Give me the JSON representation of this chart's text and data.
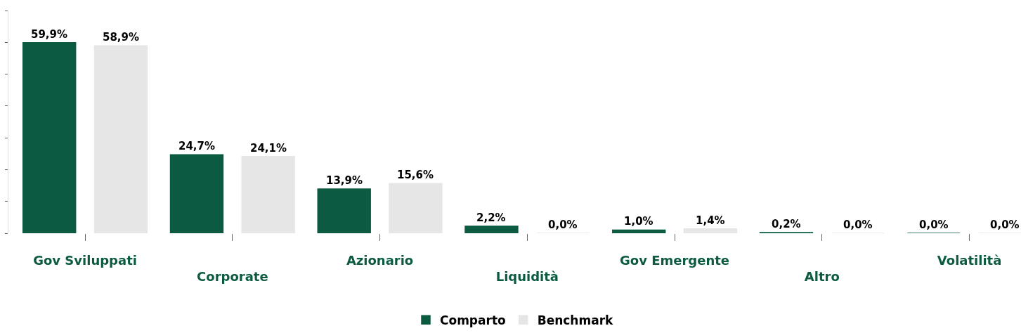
{
  "chart_data": {
    "type": "bar",
    "categories": [
      "Gov Sviluppati",
      "Corporate",
      "Azionario",
      "Liquidità",
      "Gov Emergente",
      "Altro",
      "Volatilità"
    ],
    "series": [
      {
        "name": "Comparto",
        "color": "#0b5a41",
        "values": [
          59.9,
          24.7,
          13.9,
          2.2,
          1.0,
          0.2,
          0.0
        ],
        "value_labels": [
          "59,9%",
          "24,7%",
          "13,9%",
          "2,2%",
          "1,0%",
          "0,2%",
          "0,0%"
        ]
      },
      {
        "name": "Benchmark",
        "color": "#e6e6e6",
        "values": [
          58.9,
          24.1,
          15.6,
          0.0,
          1.4,
          0.0,
          0.0
        ],
        "value_labels": [
          "58,9%",
          "24,1%",
          "15,6%",
          "0,0%",
          "1,4%",
          "0,0%",
          "0,0%"
        ]
      }
    ],
    "ylim": [
      0,
      70
    ],
    "yticks": [
      {
        "value": 0,
        "label": null
      },
      {
        "value": 10,
        "label": null
      },
      {
        "value": 20,
        "label": null
      },
      {
        "value": 30,
        "label": null
      },
      {
        "value": 40,
        "label": null
      },
      {
        "value": 50,
        "label": null
      },
      {
        "value": 60,
        "label": null
      },
      {
        "value": 70,
        "label": null
      }
    ],
    "tick_labels": "x",
    "grid": false,
    "legend": "bottom"
  }
}
